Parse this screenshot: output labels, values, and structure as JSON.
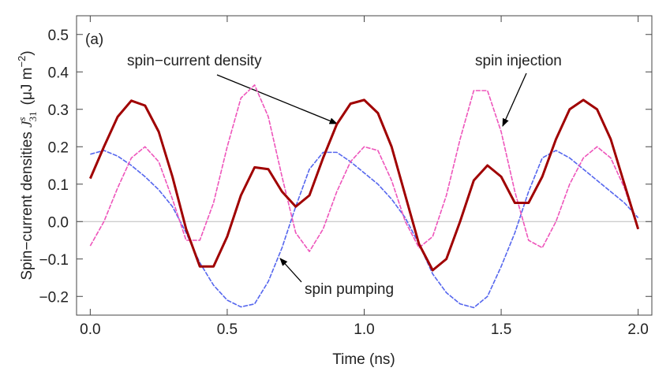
{
  "chart_data": {
    "type": "line",
    "x_label": "Time  (ns)",
    "y_label": {
      "text": "Spin−current  densities",
      "symbol": "J",
      "superscript": "s",
      "subscript": "31",
      "unit": "(μJ m",
      "unit_exponent": "−2",
      "unit_close": ")"
    },
    "panel_label": "(a)",
    "x": [
      0,
      0.05,
      0.1,
      0.15,
      0.2,
      0.25,
      0.3,
      0.35,
      0.4,
      0.45,
      0.5,
      0.55,
      0.6,
      0.65,
      0.7,
      0.75,
      0.8,
      0.85,
      0.9,
      0.95,
      1,
      1.05,
      1.1,
      1.15,
      1.2,
      1.25,
      1.3,
      1.35,
      1.4,
      1.45,
      1.5,
      1.55,
      1.6,
      1.65,
      1.7,
      1.75,
      1.8,
      1.85,
      1.9,
      1.95,
      2
    ],
    "series": [
      {
        "name": "spin−current density",
        "color": "#a00000",
        "width": 3,
        "values": [
          0.115,
          0.2,
          0.28,
          0.323,
          0.31,
          0.24,
          0.12,
          -0.02,
          -0.12,
          -0.12,
          -0.04,
          0.07,
          0.145,
          0.14,
          0.08,
          0.04,
          0.07,
          0.17,
          0.26,
          0.315,
          0.325,
          0.29,
          0.2,
          0.07,
          -0.06,
          -0.13,
          -0.1,
          0,
          0.11,
          0.15,
          0.12,
          0.05,
          0.05,
          0.12,
          0.22,
          0.3,
          0.325,
          0.3,
          0.22,
          0.1,
          -0.02
        ]
      },
      {
        "name": "spin injection",
        "color": "#ee55bb",
        "width": 1.6,
        "values": [
          -0.065,
          0,
          0.09,
          0.17,
          0.2,
          0.16,
          0.06,
          -0.05,
          -0.05,
          0.05,
          0.2,
          0.33,
          0.365,
          0.28,
          0.12,
          -0.03,
          -0.08,
          -0.02,
          0.08,
          0.16,
          0.2,
          0.19,
          0.11,
          0,
          -0.07,
          -0.04,
          0.07,
          0.22,
          0.35,
          0.35,
          0.24,
          0.08,
          -0.05,
          -0.07,
          0,
          0.1,
          0.17,
          0.2,
          0.17,
          0.09,
          -0.02
        ]
      },
      {
        "name": "spin pumping",
        "color": "#5566ee",
        "width": 1.6,
        "values": [
          0.18,
          0.19,
          0.175,
          0.15,
          0.12,
          0.085,
          0.04,
          -0.03,
          -0.11,
          -0.17,
          -0.21,
          -0.228,
          -0.22,
          -0.16,
          -0.07,
          0.04,
          0.14,
          0.185,
          0.185,
          0.16,
          0.13,
          0.1,
          0.06,
          0.01,
          -0.06,
          -0.14,
          -0.19,
          -0.22,
          -0.23,
          -0.2,
          -0.12,
          -0.03,
          0.08,
          0.17,
          0.19,
          0.17,
          0.14,
          0.11,
          0.08,
          0.05,
          0.01
        ]
      }
    ],
    "xlim": [
      -0.05,
      2.05
    ],
    "xticks": [
      {
        "value": 0,
        "label": "0.0"
      },
      0.5,
      {
        "value": 1,
        "label": "1.0"
      },
      1.5,
      {
        "value": 2,
        "label": "2.0"
      }
    ],
    "ylim": [
      -0.25,
      0.55
    ],
    "yticks": [
      {
        "value": -0.2,
        "label": "−0.2"
      },
      {
        "value": -0.1,
        "label": "−0.1"
      },
      {
        "value": 0,
        "label": "0.0"
      },
      0.1,
      0.2,
      0.3,
      0.4,
      0.5
    ],
    "grid": false
  }
}
